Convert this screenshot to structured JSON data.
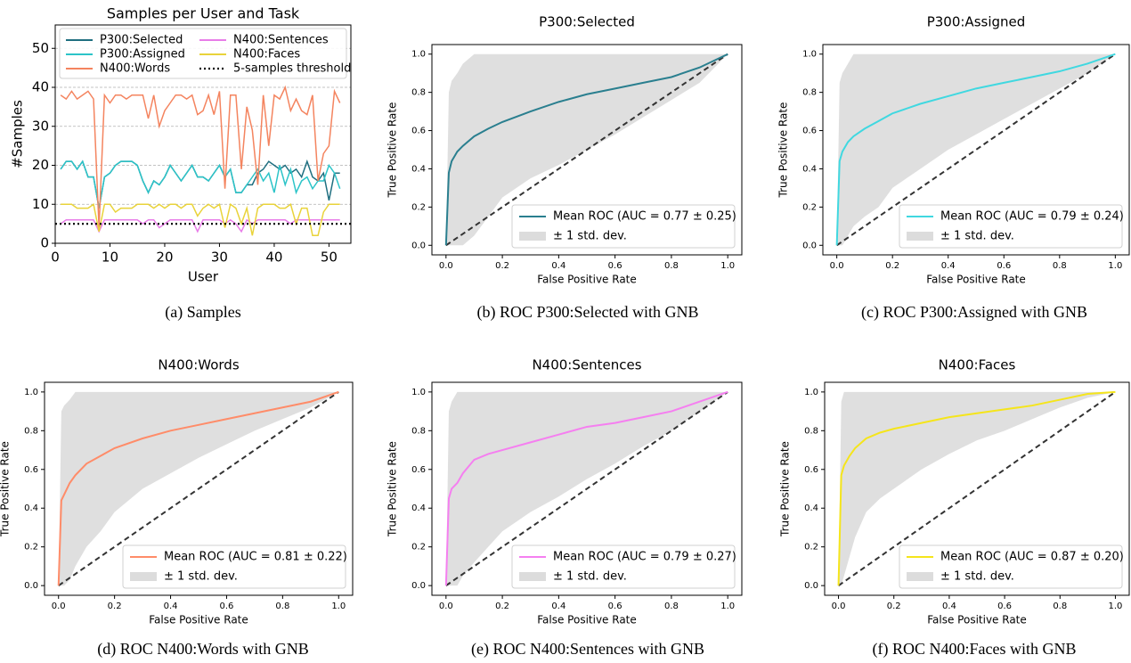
{
  "chart_data": [
    {
      "type": "line",
      "title": "Samples per User and Task",
      "xlabel": "User",
      "ylabel": "#Samples",
      "caption": "(a) Samples",
      "x": [
        1,
        2,
        3,
        4,
        5,
        6,
        7,
        8,
        9,
        10,
        11,
        12,
        13,
        14,
        15,
        16,
        17,
        18,
        19,
        20,
        21,
        22,
        23,
        24,
        25,
        26,
        27,
        28,
        29,
        30,
        31,
        32,
        33,
        34,
        35,
        36,
        37,
        38,
        39,
        40,
        41,
        42,
        43,
        44,
        45,
        46,
        47,
        48,
        49,
        50,
        51,
        52
      ],
      "xlim": [
        0,
        54
      ],
      "ylim": [
        0,
        56
      ],
      "xticks": [
        0,
        10,
        20,
        30,
        40,
        50
      ],
      "yticks": [
        0,
        10,
        20,
        30,
        40,
        50
      ],
      "grid": "y",
      "legend": "upper left",
      "series": [
        {
          "name": "P300:Selected",
          "color": "#1f6f80",
          "values": [
            19,
            21,
            21,
            19,
            21,
            17,
            17,
            9,
            17,
            18,
            20,
            21,
            21,
            21,
            20,
            16,
            13,
            16,
            15,
            17,
            20,
            18,
            16,
            18,
            20,
            17,
            17,
            16,
            18,
            20,
            17,
            19,
            13,
            13,
            15,
            15,
            18,
            19,
            21,
            20,
            19,
            20,
            18,
            19,
            17,
            21,
            17,
            16,
            18,
            11,
            18,
            18
          ]
        },
        {
          "name": "P300:Assigned",
          "color": "#2cc4c8",
          "values": [
            19,
            21,
            21,
            19,
            21,
            17,
            17,
            9,
            17,
            18,
            20,
            21,
            21,
            21,
            20,
            16,
            13,
            16,
            15,
            17,
            20,
            18,
            16,
            18,
            20,
            17,
            17,
            16,
            18,
            20,
            17,
            19,
            13,
            13,
            15,
            17,
            19,
            16,
            18,
            13,
            20,
            15,
            19,
            13,
            16,
            17,
            14,
            16,
            16,
            20,
            18,
            14
          ]
        },
        {
          "name": "N400:Words",
          "color": "#f4845f",
          "values": [
            38,
            37,
            39,
            37,
            38,
            39,
            37,
            4,
            38,
            36,
            38,
            38,
            37,
            38,
            38,
            38,
            32,
            38,
            30,
            34,
            36,
            38,
            38,
            37,
            38,
            33,
            34,
            38,
            33,
            39,
            14,
            38,
            38,
            19,
            35,
            29,
            15,
            38,
            25,
            38,
            37,
            40,
            34,
            37,
            34,
            33,
            38,
            16,
            23,
            25,
            39,
            36
          ]
        },
        {
          "name": "N400:Sentences",
          "color": "#e87de8",
          "values": [
            5,
            6,
            6,
            6,
            6,
            6,
            6,
            3,
            6,
            6,
            6,
            6,
            6,
            6,
            6,
            5,
            6,
            6,
            4,
            5,
            6,
            6,
            6,
            6,
            6,
            3,
            6,
            6,
            6,
            6,
            5,
            6,
            5,
            3,
            6,
            5,
            6,
            6,
            6,
            6,
            6,
            6,
            5,
            6,
            6,
            6,
            6,
            6,
            6,
            6,
            6,
            6
          ]
        },
        {
          "name": "N400:Faces",
          "color": "#e9d33a",
          "values": [
            10,
            10,
            10,
            9,
            9,
            9,
            10,
            3,
            10,
            10,
            8,
            9,
            9,
            9,
            10,
            10,
            10,
            9,
            10,
            9,
            10,
            10,
            9,
            10,
            10,
            7,
            9,
            10,
            9,
            10,
            4,
            10,
            9,
            5,
            9,
            2,
            9,
            10,
            10,
            10,
            9,
            9,
            10,
            5,
            9,
            9,
            2,
            2,
            8,
            10,
            10,
            10
          ]
        }
      ],
      "threshold": {
        "name": "5-samples threshold",
        "value": 5,
        "color": "#000000"
      }
    },
    {
      "type": "roc",
      "title": "P300:Selected",
      "xlabel": "False Positive Rate",
      "ylabel": "True Positive Rate",
      "caption": "(b) ROC P300:Selected with GNB",
      "xlim": [
        -0.05,
        1.05
      ],
      "ylim": [
        -0.05,
        1.05
      ],
      "legend": "lower right",
      "xticks": [
        {
          "value": 0,
          "label": "0.0"
        },
        0.2,
        0.4,
        0.6,
        0.8,
        {
          "value": 1,
          "label": "1.0"
        }
      ],
      "yticks": [
        {
          "value": 0,
          "label": "0.0"
        },
        0.2,
        0.4,
        0.6,
        0.8,
        {
          "value": 1,
          "label": "1.0"
        }
      ],
      "x": [
        0,
        0.01,
        0.02,
        0.04,
        0.06,
        0.1,
        0.15,
        0.2,
        0.3,
        0.4,
        0.5,
        0.6,
        0.7,
        0.8,
        0.9,
        1
      ],
      "series": [
        {
          "name": "Mean ROC (AUC = 0.77 ± 0.25)",
          "color": "#2a7f8f",
          "values": [
            0,
            0.38,
            0.44,
            0.49,
            0.52,
            0.57,
            0.61,
            0.645,
            0.7,
            0.75,
            0.79,
            0.82,
            0.85,
            0.88,
            0.93,
            1
          ]
        }
      ],
      "band": {
        "name": "± 1 std. dev.",
        "color": "#dcdcdc",
        "upper": [
          0,
          0.8,
          0.86,
          0.9,
          0.95,
          1,
          1,
          1,
          1,
          1,
          1,
          1,
          1,
          1,
          1,
          1
        ],
        "lower": [
          0,
          0,
          0,
          0,
          0,
          0.05,
          0.15,
          0.25,
          0.35,
          0.42,
          0.5,
          0.58,
          0.67,
          0.76,
          0.85,
          1
        ]
      }
    },
    {
      "type": "roc",
      "title": "P300:Assigned",
      "xlabel": "False Positive Rate",
      "ylabel": "True Positive Rate",
      "caption": "(c) ROC P300:Assigned with GNB",
      "xlim": [
        -0.05,
        1.05
      ],
      "ylim": [
        -0.05,
        1.05
      ],
      "legend": "lower right",
      "xticks": [
        {
          "value": 0,
          "label": "0.0"
        },
        0.2,
        0.4,
        0.6,
        0.8,
        {
          "value": 1,
          "label": "1.0"
        }
      ],
      "yticks": [
        {
          "value": 0,
          "label": "0.0"
        },
        0.2,
        0.4,
        0.6,
        0.8,
        {
          "value": 1,
          "label": "1.0"
        }
      ],
      "x": [
        0,
        0.01,
        0.02,
        0.04,
        0.06,
        0.1,
        0.15,
        0.2,
        0.3,
        0.4,
        0.5,
        0.6,
        0.7,
        0.8,
        0.9,
        1
      ],
      "series": [
        {
          "name": "Mean ROC (AUC = 0.79 ± 0.24)",
          "color": "#40d8e0",
          "values": [
            0,
            0.44,
            0.49,
            0.54,
            0.57,
            0.61,
            0.65,
            0.69,
            0.74,
            0.78,
            0.82,
            0.85,
            0.88,
            0.91,
            0.95,
            1
          ]
        }
      ],
      "band": {
        "name": "± 1 std. dev.",
        "color": "#dcdcdc",
        "upper": [
          0,
          0.85,
          0.9,
          0.95,
          1,
          1,
          1,
          1,
          1,
          1,
          1,
          1,
          1,
          1,
          1,
          1
        ],
        "lower": [
          0,
          0,
          0,
          0.05,
          0.1,
          0.15,
          0.2,
          0.3,
          0.4,
          0.5,
          0.58,
          0.66,
          0.74,
          0.82,
          0.9,
          1
        ]
      }
    },
    {
      "type": "roc",
      "title": "N400:Words",
      "xlabel": "False Positive Rate",
      "ylabel": "True Positive Rate",
      "caption": "(d) ROC N400:Words with GNB",
      "xlim": [
        -0.05,
        1.05
      ],
      "ylim": [
        -0.05,
        1.05
      ],
      "legend": "lower right",
      "xticks": [
        {
          "value": 0,
          "label": "0.0"
        },
        0.2,
        0.4,
        0.6,
        0.8,
        {
          "value": 1,
          "label": "1.0"
        }
      ],
      "yticks": [
        {
          "value": 0,
          "label": "0.0"
        },
        0.2,
        0.4,
        0.6,
        0.8,
        {
          "value": 1,
          "label": "1.0"
        }
      ],
      "x": [
        0,
        0.01,
        0.02,
        0.04,
        0.06,
        0.1,
        0.15,
        0.2,
        0.3,
        0.4,
        0.5,
        0.6,
        0.7,
        0.8,
        0.9,
        1
      ],
      "series": [
        {
          "name": "Mean ROC (AUC = 0.81 ± 0.22)",
          "color": "#ff8c69",
          "values": [
            0,
            0.44,
            0.47,
            0.53,
            0.57,
            0.63,
            0.67,
            0.71,
            0.76,
            0.8,
            0.83,
            0.86,
            0.89,
            0.92,
            0.95,
            1
          ]
        }
      ],
      "band": {
        "name": "± 1 std. dev.",
        "color": "#dcdcdc",
        "upper": [
          0,
          0.9,
          0.93,
          0.96,
          1,
          1,
          1,
          1,
          1,
          1,
          1,
          1,
          1,
          1,
          1,
          1
        ],
        "lower": [
          0,
          0,
          0,
          0.03,
          0.1,
          0.2,
          0.28,
          0.38,
          0.5,
          0.58,
          0.66,
          0.73,
          0.8,
          0.86,
          0.92,
          1
        ]
      }
    },
    {
      "type": "roc",
      "title": "N400:Sentences",
      "xlabel": "False Positive Rate",
      "ylabel": "True Positive Rate",
      "caption": "(e) ROC N400:Sentences with GNB",
      "xlim": [
        -0.05,
        1.05
      ],
      "ylim": [
        -0.05,
        1.05
      ],
      "legend": "lower right",
      "xticks": [
        {
          "value": 0,
          "label": "0.0"
        },
        0.2,
        0.4,
        0.6,
        0.8,
        {
          "value": 1,
          "label": "1.0"
        }
      ],
      "yticks": [
        {
          "value": 0,
          "label": "0.0"
        },
        0.2,
        0.4,
        0.6,
        0.8,
        {
          "value": 1,
          "label": "1.0"
        }
      ],
      "x": [
        0,
        0.01,
        0.02,
        0.04,
        0.06,
        0.1,
        0.15,
        0.2,
        0.3,
        0.4,
        0.5,
        0.6,
        0.7,
        0.8,
        0.9,
        1
      ],
      "series": [
        {
          "name": "Mean ROC (AUC = 0.79 ± 0.27)",
          "color": "#f57ff0",
          "values": [
            0,
            0.45,
            0.5,
            0.53,
            0.58,
            0.65,
            0.68,
            0.7,
            0.74,
            0.78,
            0.82,
            0.84,
            0.87,
            0.9,
            0.95,
            1
          ]
        }
      ],
      "band": {
        "name": "± 1 std. dev.",
        "color": "#dcdcdc",
        "upper": [
          0,
          0.9,
          0.95,
          1,
          1,
          1,
          1,
          1,
          1,
          1,
          1,
          1,
          1,
          1,
          1,
          1
        ],
        "lower": [
          0,
          0,
          0,
          0,
          0.05,
          0.12,
          0.2,
          0.28,
          0.38,
          0.46,
          0.55,
          0.63,
          0.72,
          0.8,
          0.9,
          1
        ]
      }
    },
    {
      "type": "roc",
      "title": "N400:Faces",
      "xlabel": "False Positive Rate",
      "ylabel": "True Positive Rate",
      "caption": "(f) ROC N400:Faces with GNB",
      "xlim": [
        -0.05,
        1.05
      ],
      "ylim": [
        -0.05,
        1.05
      ],
      "legend": "lower right",
      "xticks": [
        {
          "value": 0,
          "label": "0.0"
        },
        0.2,
        0.4,
        0.6,
        0.8,
        {
          "value": 1,
          "label": "1.0"
        }
      ],
      "yticks": [
        {
          "value": 0,
          "label": "0.0"
        },
        0.2,
        0.4,
        0.6,
        0.8,
        {
          "value": 1,
          "label": "1.0"
        }
      ],
      "x": [
        0,
        0.01,
        0.02,
        0.04,
        0.06,
        0.1,
        0.15,
        0.2,
        0.3,
        0.4,
        0.5,
        0.6,
        0.7,
        0.8,
        0.9,
        1
      ],
      "series": [
        {
          "name": "Mean ROC (AUC = 0.87 ± 0.20)",
          "color": "#f5e51b",
          "values": [
            0,
            0.57,
            0.62,
            0.67,
            0.71,
            0.76,
            0.79,
            0.81,
            0.84,
            0.87,
            0.89,
            0.91,
            0.93,
            0.96,
            0.99,
            1
          ]
        }
      ],
      "band": {
        "name": "± 1 std. dev.",
        "color": "#dcdcdc",
        "upper": [
          0,
          0.95,
          1,
          1,
          1,
          1,
          1,
          1,
          1,
          1,
          1,
          1,
          1,
          1,
          1,
          1
        ],
        "lower": [
          0,
          0,
          0.05,
          0.15,
          0.25,
          0.38,
          0.45,
          0.5,
          0.6,
          0.68,
          0.75,
          0.8,
          0.86,
          0.92,
          0.97,
          1
        ]
      }
    }
  ]
}
